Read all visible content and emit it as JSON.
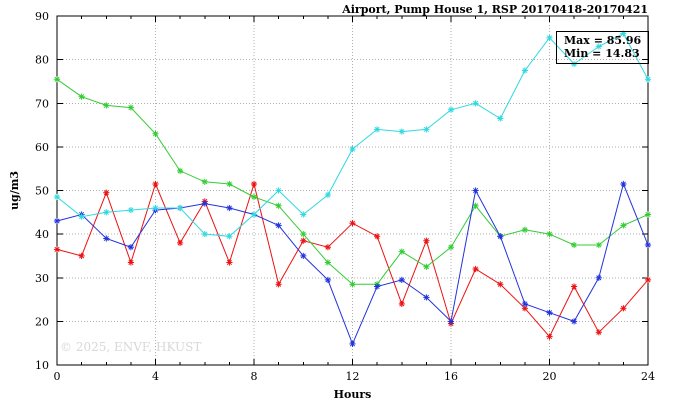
{
  "watermark": "© 2025, ENVF, HKUST",
  "annotation": {
    "max_label": "Max = 85.96",
    "min_label": "Min = 14.83"
  },
  "chart_data": {
    "type": "line",
    "title": "Airport, Pump House 1, RSP 20170418-20170421",
    "xlabel": "Hours",
    "ylabel": "ug/m3",
    "xlim": [
      0,
      24
    ],
    "ylim": [
      10,
      90
    ],
    "xticks": [
      0,
      4,
      8,
      12,
      16,
      20,
      24
    ],
    "yticks": [
      10,
      20,
      30,
      40,
      50,
      60,
      70,
      80,
      90
    ],
    "minor_xtick_step": 1,
    "grid": true,
    "grid_color": "#b0b0b0",
    "axis_color": "#000000",
    "legend_position": "none",
    "annotations": [
      "Max = 85.96",
      "Min = 14.83"
    ],
    "max": 85.96,
    "min": 14.83,
    "x": [
      0,
      1,
      2,
      3,
      4,
      5,
      6,
      7,
      8,
      9,
      10,
      11,
      12,
      13,
      14,
      15,
      16,
      17,
      18,
      19,
      20,
      21,
      22,
      23,
      24
    ],
    "series": [
      {
        "name": "red",
        "color": "#ee1111",
        "marker": "asterisk",
        "values": [
          36.5,
          35,
          49.5,
          33.5,
          51.5,
          38,
          47.5,
          33.5,
          51.5,
          28.5,
          38.5,
          37,
          42.5,
          39.5,
          24,
          38.5,
          19.5,
          32,
          28.5,
          23,
          16.5,
          28,
          17.5,
          23,
          29.5
        ]
      },
      {
        "name": "green",
        "color": "#33cc33",
        "marker": "asterisk",
        "values": [
          75.5,
          71.5,
          69.5,
          69,
          63,
          54.5,
          52,
          51.5,
          48.5,
          46.5,
          40,
          33.5,
          28.5,
          28.5,
          36,
          32.5,
          37,
          46.5,
          39.5,
          41,
          40,
          37.5,
          37.5,
          42,
          44.5
        ]
      },
      {
        "name": "blue",
        "color": "#2233dd",
        "marker": "asterisk",
        "values": [
          43,
          44.5,
          39,
          37,
          45.5,
          46,
          47,
          46,
          44.5,
          42,
          35,
          29.5,
          14.83,
          28,
          29.5,
          25.5,
          20,
          50,
          39.5,
          24,
          22,
          20,
          30,
          51.5,
          37.5
        ]
      },
      {
        "name": "cyan",
        "color": "#30d9e0",
        "marker": "asterisk",
        "values": [
          48.5,
          44,
          45,
          45.5,
          46,
          46,
          40,
          39.5,
          44.5,
          50,
          44.5,
          49,
          59.5,
          64,
          63.5,
          64,
          68.5,
          70,
          66.5,
          77.5,
          85,
          79,
          83,
          85.96,
          75.5
        ]
      }
    ]
  }
}
